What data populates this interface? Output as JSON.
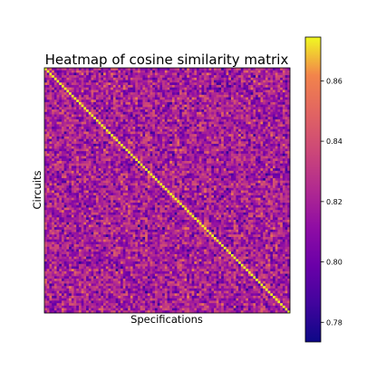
{
  "chart_data": {
    "type": "heatmap",
    "title": "Heatmap of cosine similarity matrix",
    "xlabel": "Specifications",
    "ylabel": "Circuits",
    "colormap": "plasma",
    "matrix_size": 100,
    "diagonal_value": 0.875,
    "off_diagonal_range": [
      0.775,
      0.855
    ],
    "off_diagonal_mean": 0.815,
    "vmin": 0.7735,
    "vmax": 0.8745,
    "colorbar": {
      "ticks": [
        0.78,
        0.8,
        0.82,
        0.84,
        0.86
      ],
      "tick_labels": [
        "0.78",
        "0.80",
        "0.82",
        "0.84",
        "0.86"
      ]
    },
    "grid": false,
    "axis_ticks_visible": false
  }
}
